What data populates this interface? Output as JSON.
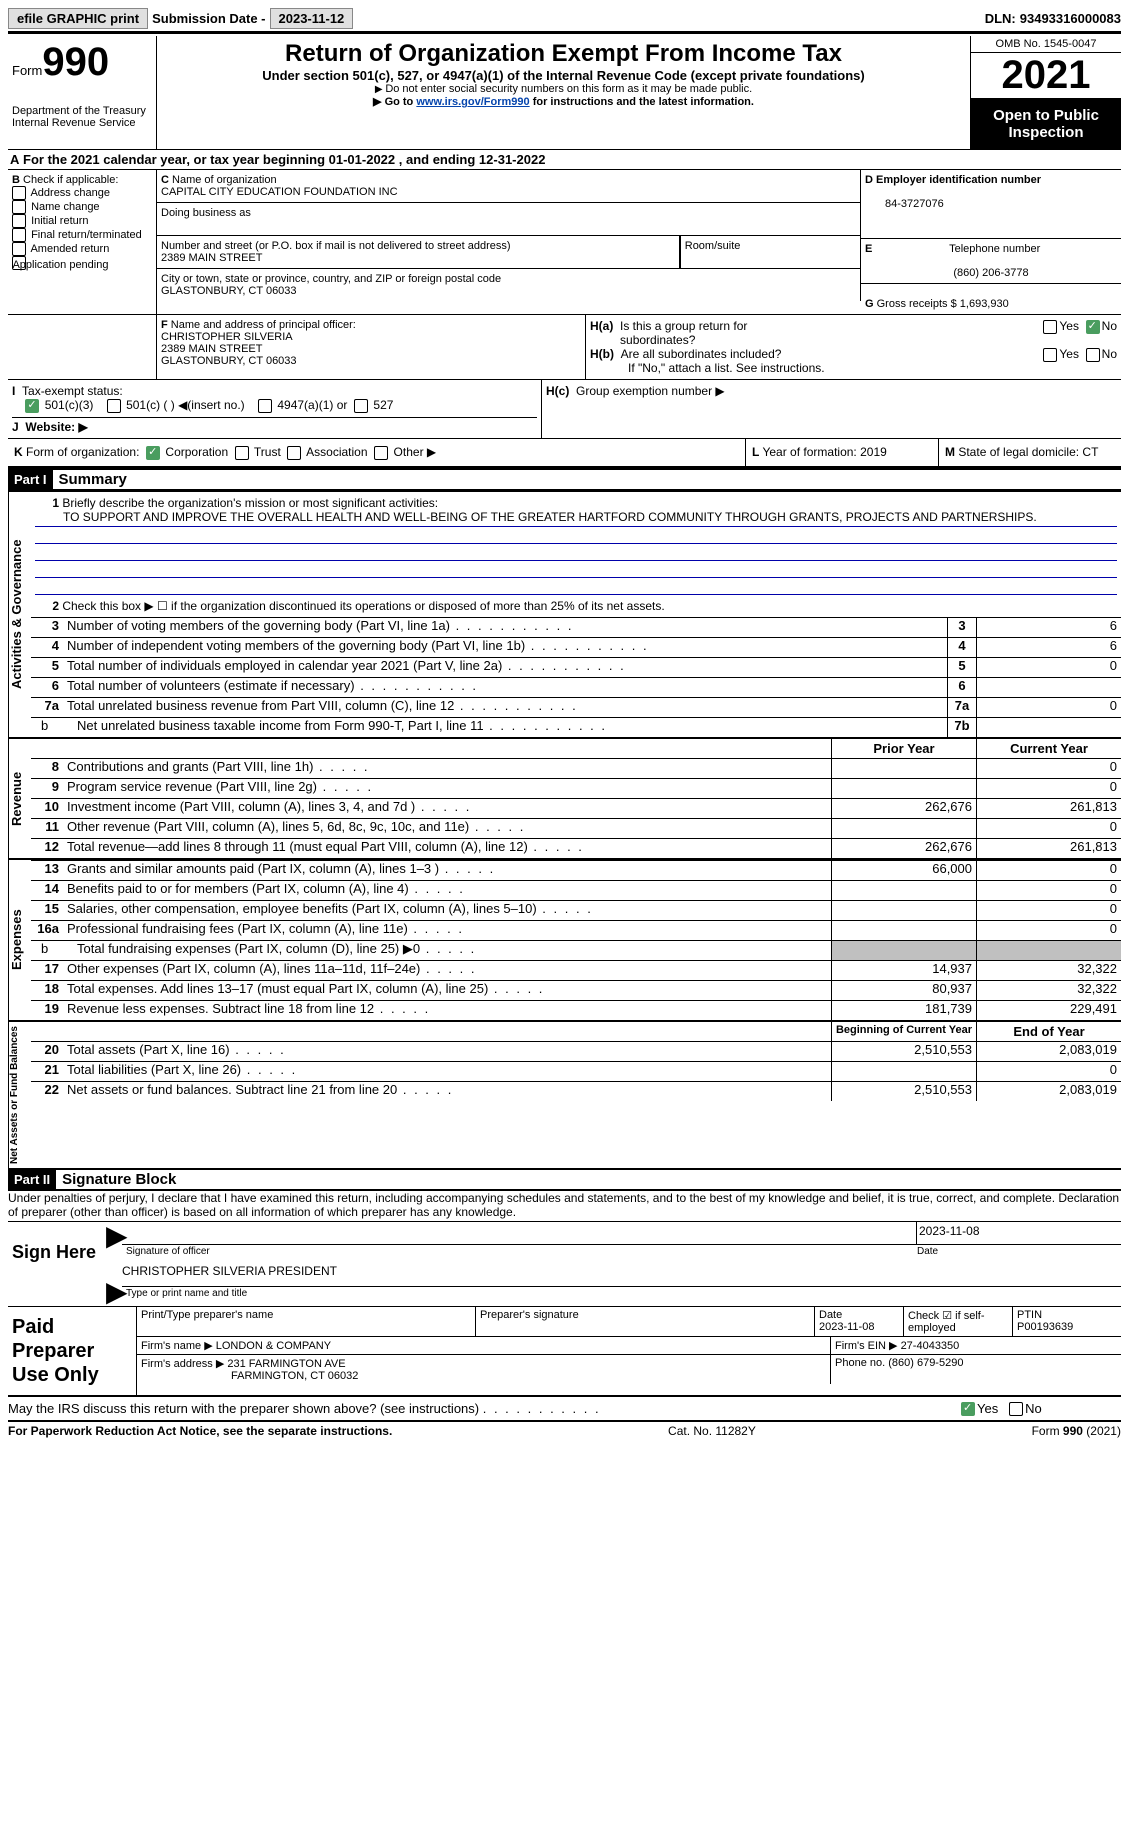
{
  "top": {
    "efile": "efile GRAPHIC print",
    "subdate_label": "Submission Date -",
    "subdate": "2023-11-12",
    "dln_label": "DLN:",
    "dln": "93493316000083"
  },
  "header": {
    "form": "Form",
    "num": "990",
    "dept": "Department of the Treasury\nInternal Revenue Service",
    "title": "Return of Organization Exempt From Income Tax",
    "sub": "Under section 501(c), 527, or 4947(a)(1) of the Internal Revenue Code (except private foundations)",
    "note1": "Do not enter social security numbers on this form as it may be made public.",
    "note2_pre": "Go to ",
    "note2_link": "www.irs.gov/Form990",
    "note2_post": " for instructions and the latest information.",
    "omb": "OMB No. 1545-0047",
    "year": "2021",
    "inspect": "Open to Public Inspection"
  },
  "A": {
    "text_pre": "For the 2021 calendar year, or tax year beginning ",
    "begin": "01-01-2022",
    "mid": "  , and ending ",
    "end": "12-31-2022"
  },
  "B": {
    "label": "Check if applicable:",
    "opts": [
      "Address change",
      "Name change",
      "Initial return",
      "Final return/terminated",
      "Amended return",
      "Application pending"
    ]
  },
  "C": {
    "name_label": "Name of organization",
    "name": "CAPITAL CITY EDUCATION FOUNDATION INC",
    "dba_label": "Doing business as",
    "addr_label": "Number and street (or P.O. box if mail is not delivered to street address)",
    "addr": "2389 MAIN STREET",
    "room_label": "Room/suite",
    "city_label": "City or town, state or province, country, and ZIP or foreign postal code",
    "city": "GLASTONBURY, CT  06033"
  },
  "D": {
    "label": "Employer identification number",
    "val": "84-3727076"
  },
  "E": {
    "label": "Telephone number",
    "val": "(860) 206-3778"
  },
  "G": {
    "label": "Gross receipts $",
    "val": "1,693,930"
  },
  "F": {
    "label": "Name and address of principal officer:",
    "name": "CHRISTOPHER SILVERIA",
    "addr1": "2389 MAIN STREET",
    "addr2": "GLASTONBURY, CT  06033"
  },
  "H": {
    "a": "Is this a group return for subordinates?",
    "b": "Are all subordinates included?",
    "b_note": "If \"No,\" attach a list. See instructions.",
    "c": "Group exemption number ▶"
  },
  "I": {
    "label": "Tax-exempt status:",
    "o1": "501(c)(3)",
    "o2": "501(c) (  ) ◀(insert no.)",
    "o3": "4947(a)(1) or",
    "o4": "527"
  },
  "J": {
    "label": "Website: ▶"
  },
  "K": {
    "label": "Form of organization:",
    "o1": "Corporation",
    "o2": "Trust",
    "o3": "Association",
    "o4": "Other ▶"
  },
  "L": {
    "label": "Year of formation:",
    "val": "2019"
  },
  "M": {
    "label": "State of legal domicile:",
    "val": "CT"
  },
  "part1": {
    "tag": "Part I",
    "title": "Summary",
    "ln1": "Briefly describe the organization's mission or most significant activities:",
    "mission": "TO SUPPORT AND IMPROVE THE OVERALL HEALTH AND WELL-BEING OF THE GREATER HARTFORD COMMUNITY THROUGH GRANTS, PROJECTS AND PARTNERSHIPS.",
    "ln2": "Check this box ▶ ☐  if the organization discontinued its operations or disposed of more than 25% of its net assets.",
    "rows_gov": [
      {
        "n": "3",
        "d": "Number of voting members of the governing body (Part VI, line 1a)",
        "b": "3",
        "v": "6"
      },
      {
        "n": "4",
        "d": "Number of independent voting members of the governing body (Part VI, line 1b)",
        "b": "4",
        "v": "6"
      },
      {
        "n": "5",
        "d": "Total number of individuals employed in calendar year 2021 (Part V, line 2a)",
        "b": "5",
        "v": "0"
      },
      {
        "n": "6",
        "d": "Total number of volunteers (estimate if necessary)",
        "b": "6",
        "v": ""
      },
      {
        "n": "7a",
        "d": "Total unrelated business revenue from Part VIII, column (C), line 12",
        "b": "7a",
        "v": "0"
      },
      {
        "n": "b",
        "d": "Net unrelated business taxable income from Form 990-T, Part I, line 11",
        "b": "7b",
        "v": "",
        "sub": true
      }
    ],
    "col_prior": "Prior Year",
    "col_curr": "Current Year",
    "rows_rev": [
      {
        "n": "8",
        "d": "Contributions and grants (Part VIII, line 1h)",
        "p": "",
        "c": "0"
      },
      {
        "n": "9",
        "d": "Program service revenue (Part VIII, line 2g)",
        "p": "",
        "c": "0"
      },
      {
        "n": "10",
        "d": "Investment income (Part VIII, column (A), lines 3, 4, and 7d )",
        "p": "262,676",
        "c": "261,813"
      },
      {
        "n": "11",
        "d": "Other revenue (Part VIII, column (A), lines 5, 6d, 8c, 9c, 10c, and 11e)",
        "p": "",
        "c": "0"
      },
      {
        "n": "12",
        "d": "Total revenue—add lines 8 through 11 (must equal Part VIII, column (A), line 12)",
        "p": "262,676",
        "c": "261,813"
      }
    ],
    "rows_exp": [
      {
        "n": "13",
        "d": "Grants and similar amounts paid (Part IX, column (A), lines 1–3 )",
        "p": "66,000",
        "c": "0"
      },
      {
        "n": "14",
        "d": "Benefits paid to or for members (Part IX, column (A), line 4)",
        "p": "",
        "c": "0"
      },
      {
        "n": "15",
        "d": "Salaries, other compensation, employee benefits (Part IX, column (A), lines 5–10)",
        "p": "",
        "c": "0"
      },
      {
        "n": "16a",
        "d": "Professional fundraising fees (Part IX, column (A), line 11e)",
        "p": "",
        "c": "0"
      },
      {
        "n": "b",
        "d": "Total fundraising expenses (Part IX, column (D), line 25) ▶0",
        "p": "shade",
        "c": "shade",
        "sub": true
      },
      {
        "n": "17",
        "d": "Other expenses (Part IX, column (A), lines 11a–11d, 11f–24e)",
        "p": "14,937",
        "c": "32,322"
      },
      {
        "n": "18",
        "d": "Total expenses. Add lines 13–17 (must equal Part IX, column (A), line 25)",
        "p": "80,937",
        "c": "32,322"
      },
      {
        "n": "19",
        "d": "Revenue less expenses. Subtract line 18 from line 12",
        "p": "181,739",
        "c": "229,491"
      }
    ],
    "col_beg": "Beginning of Current Year",
    "col_end": "End of Year",
    "rows_net": [
      {
        "n": "20",
        "d": "Total assets (Part X, line 16)",
        "p": "2,510,553",
        "c": "2,083,019"
      },
      {
        "n": "21",
        "d": "Total liabilities (Part X, line 26)",
        "p": "",
        "c": "0"
      },
      {
        "n": "22",
        "d": "Net assets or fund balances. Subtract line 21 from line 20",
        "p": "2,510,553",
        "c": "2,083,019"
      }
    ],
    "tab_gov": "Activities & Governance",
    "tab_rev": "Revenue",
    "tab_exp": "Expenses",
    "tab_net": "Net Assets or Fund Balances"
  },
  "part2": {
    "tag": "Part II",
    "title": "Signature Block",
    "decl": "Under penalties of perjury, I declare that I have examined this return, including accompanying schedules and statements, and to the best of my knowledge and belief, it is true, correct, and complete. Declaration of preparer (other than officer) is based on all information of which preparer has any knowledge.",
    "sign": "Sign Here",
    "sig_officer": "Signature of officer",
    "sig_date": "Date",
    "sig_date_val": "2023-11-08",
    "type_name": "CHRISTOPHER SILVERIA  PRESIDENT",
    "type_label": "Type or print name and title"
  },
  "prep": {
    "title": "Paid Preparer Use Only",
    "h1": "Print/Type preparer's name",
    "h2": "Preparer's signature",
    "h3": "Date",
    "h3v": "2023-11-08",
    "h4": "Check ☑ if self-employed",
    "h5": "PTIN",
    "h5v": "P00193639",
    "firm_label": "Firm's name   ▶",
    "firm": "LONDON & COMPANY",
    "ein_label": "Firm's EIN ▶",
    "ein": "27-4043350",
    "addr_label": "Firm's address ▶",
    "addr1": "231 FARMINGTON AVE",
    "addr2": "FARMINGTON, CT  06032",
    "phone_label": "Phone no.",
    "phone": "(860) 679-5290"
  },
  "disc": {
    "q": "May the IRS discuss this return with the preparer shown above? (see instructions)",
    "yes": "Yes",
    "no": "No"
  },
  "footer": {
    "l": "For Paperwork Reduction Act Notice, see the separate instructions.",
    "m": "Cat. No. 11282Y",
    "r": "Form 990 (2021)"
  }
}
